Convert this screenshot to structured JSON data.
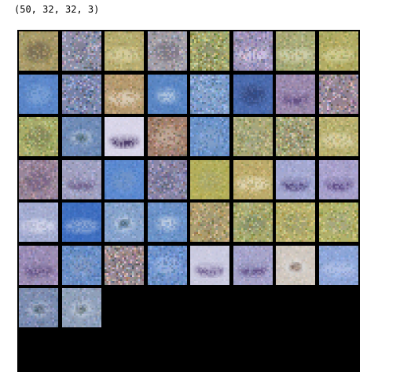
{
  "output": {
    "shape_text": "(50, 32, 32, 3)"
  },
  "grid": {
    "count": 50,
    "columns": 8,
    "background": "#000000",
    "tiles": [
      {
        "bg": "#a89a68",
        "blob": "#6a5c4e",
        "shape": "blob",
        "noise": 0.55
      },
      {
        "bg": "#8f8fa6",
        "blob": "#7c7c90",
        "shape": "blob",
        "noise": 0.95
      },
      {
        "bg": "#b5ab70",
        "blob": "#dcd4a8",
        "shape": "band",
        "noise": 0.55
      },
      {
        "bg": "#a39fa8",
        "blob": "#6e6878",
        "shape": "blob",
        "noise": 0.75
      },
      {
        "bg": "#a3a66c",
        "blob": "#8a8e72",
        "shape": "blob",
        "noise": 0.9
      },
      {
        "bg": "#9d93b8",
        "blob": "#d8d0e6",
        "shape": "band",
        "noise": 0.8
      },
      {
        "bg": "#a9ab78",
        "blob": "#d6d6b8",
        "shape": "band",
        "noise": 0.6
      },
      {
        "bg": "#b0ab64",
        "blob": "#d5d3a2",
        "shape": "band",
        "noise": 0.55
      },
      {
        "bg": "#5b86c8",
        "blob": "#87aada",
        "shape": "blob",
        "noise": 0.35
      },
      {
        "bg": "#7f8ab0",
        "blob": "#6d7ba2",
        "shape": "blob",
        "noise": 0.95
      },
      {
        "bg": "#b59a70",
        "blob": "#e0d6c6",
        "shape": "band",
        "noise": 0.55
      },
      {
        "bg": "#5a86c4",
        "blob": "#b4c8dc",
        "shape": "ring",
        "noise": 0.35
      },
      {
        "bg": "#7d9cc8",
        "blob": "#8fa8cc",
        "shape": "blob",
        "noise": 0.8
      },
      {
        "bg": "#4b6bae",
        "blob": "#2d3c6e",
        "shape": "blob",
        "noise": 0.35
      },
      {
        "bg": "#9b89ad",
        "blob": "#5d4a7e",
        "shape": "disc",
        "noise": 0.5
      },
      {
        "bg": "#9d8d9a",
        "blob": "#8c7a8c",
        "shape": "blob",
        "noise": 1.0
      },
      {
        "bg": "#a6ab6a",
        "blob": "#7c7a58",
        "shape": "blob",
        "noise": 0.7
      },
      {
        "bg": "#6f8bb6",
        "blob": "#2f4a4c",
        "shape": "ring",
        "noise": 0.45
      },
      {
        "bg": "#d8d5e8",
        "blob": "#3c2c5c",
        "shape": "disc",
        "noise": 0.2
      },
      {
        "bg": "#a08070",
        "blob": "#c9b8a8",
        "shape": "blob",
        "noise": 0.75
      },
      {
        "bg": "#6c92c8",
        "blob": "#8aa4c8",
        "shape": "blob",
        "noise": 0.6
      },
      {
        "bg": "#aaa878",
        "blob": "#98a088",
        "shape": "blob",
        "noise": 0.7
      },
      {
        "bg": "#a5a37a",
        "blob": "#8b8a78",
        "shape": "blob",
        "noise": 0.95
      },
      {
        "bg": "#b8b070",
        "blob": "#e0d8b8",
        "shape": "band",
        "noise": 0.55
      },
      {
        "bg": "#9a869a",
        "blob": "#6e5a80",
        "shape": "blob",
        "noise": 0.65
      },
      {
        "bg": "#9fa0c0",
        "blob": "#6a5a86",
        "shape": "disc",
        "noise": 0.55
      },
      {
        "bg": "#5d8ad0",
        "blob": "#7898c4",
        "shape": "blob",
        "noise": 0.35
      },
      {
        "bg": "#8a86a6",
        "blob": "#6a6c8a",
        "shape": "blob",
        "noise": 0.8
      },
      {
        "bg": "#b3ae5c",
        "blob": "#a6a672",
        "shape": "blob",
        "noise": 0.45
      },
      {
        "bg": "#bcab6c",
        "blob": "#e8e0c4",
        "shape": "band",
        "noise": 0.5
      },
      {
        "bg": "#a4a8d0",
        "blob": "#4a3a72",
        "shape": "disc",
        "noise": 0.4
      },
      {
        "bg": "#a8a2cc",
        "blob": "#54407e",
        "shape": "disc",
        "noise": 0.4
      },
      {
        "bg": "#a4acd0",
        "blob": "#dde0f0",
        "shape": "band",
        "noise": 0.4
      },
      {
        "bg": "#3f6fc0",
        "blob": "#9ab0d8",
        "shape": "band",
        "noise": 0.3
      },
      {
        "bg": "#86a2cc",
        "blob": "#2c4a5c",
        "shape": "ring",
        "noise": 0.5
      },
      {
        "bg": "#6c92c8",
        "blob": "#c8d2e0",
        "shape": "ring",
        "noise": 0.45
      },
      {
        "bg": "#ad9e70",
        "blob": "#9c9478",
        "shape": "blob",
        "noise": 0.8
      },
      {
        "bg": "#a8a86e",
        "blob": "#7e8a70",
        "shape": "blob",
        "noise": 0.75
      },
      {
        "bg": "#b6b06c",
        "blob": "#9a9a78",
        "shape": "blob",
        "noise": 0.7
      },
      {
        "bg": "#b1b16a",
        "blob": "#a4a48c",
        "shape": "blob",
        "noise": 0.7
      },
      {
        "bg": "#9a8cb4",
        "blob": "#5a4a7c",
        "shape": "disc",
        "noise": 0.5
      },
      {
        "bg": "#6a8ec6",
        "blob": "#8c9cbc",
        "shape": "blob",
        "noise": 0.6
      },
      {
        "bg": "#9a8c92",
        "blob": "#8c7c88",
        "shape": "blob",
        "noise": 1.0
      },
      {
        "bg": "#6f92cc",
        "blob": "#a8bce0",
        "shape": "blob",
        "noise": 0.65
      },
      {
        "bg": "#cbcbe0",
        "blob": "#6a5a8e",
        "shape": "disc",
        "noise": 0.25
      },
      {
        "bg": "#a6a4ca",
        "blob": "#5e4c84",
        "shape": "disc",
        "noise": 0.45
      },
      {
        "bg": "#d0c8c0",
        "blob": "#5a3a2c",
        "shape": "ring",
        "noise": 0.35
      },
      {
        "bg": "#8ea6d8",
        "blob": "#b8c4e8",
        "shape": "band",
        "noise": 0.45
      },
      {
        "bg": "#7c8cb0",
        "blob": "#2c3a4a",
        "shape": "ring",
        "noise": 0.55
      },
      {
        "bg": "#90a0ba",
        "blob": "#3c4c4a",
        "shape": "ring",
        "noise": 0.5
      }
    ]
  }
}
